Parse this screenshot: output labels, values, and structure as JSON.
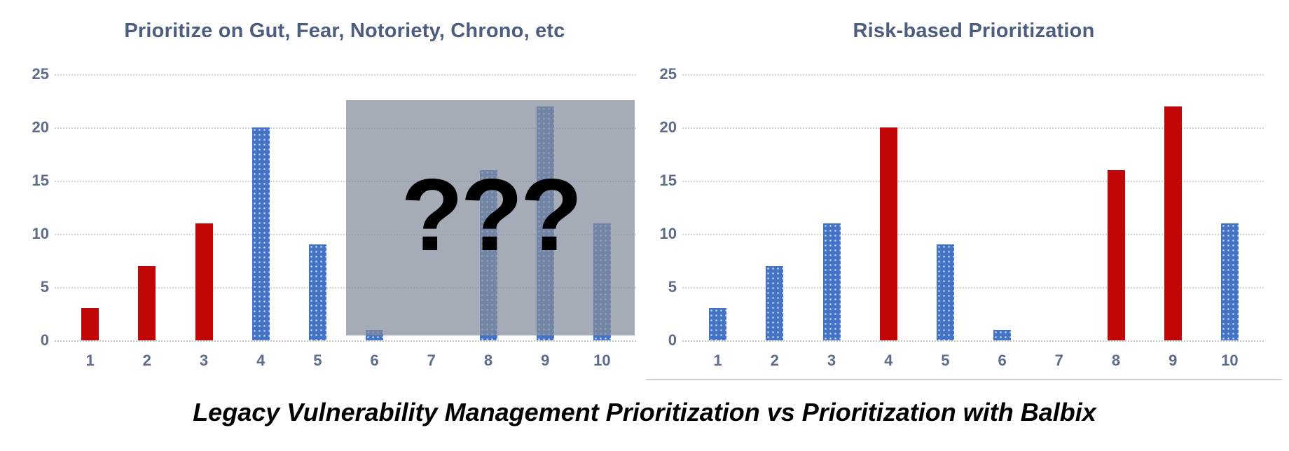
{
  "page": {
    "caption": "Legacy Vulnerability Management Prioritization vs Prioritization with Balbix"
  },
  "colors": {
    "red": "#c00606",
    "blue": "#4472c4",
    "title_text": "#4d5d80",
    "axis_text": "#5d6c8c",
    "grid": "#d4d4d4",
    "overlay": "rgba(132,140,155,0.72)",
    "caption_text": "#000000"
  },
  "chart_data": [
    {
      "type": "bar",
      "title": "Prioritize on Gut, Fear, Notoriety, Chrono, etc",
      "categories": [
        "1",
        "2",
        "3",
        "4",
        "5",
        "6",
        "7",
        "8",
        "9",
        "10"
      ],
      "values": [
        3,
        7,
        11,
        20,
        9,
        1,
        0,
        16,
        22,
        11
      ],
      "bar_colors": [
        "red",
        "red",
        "red",
        "blue",
        "blue",
        "blue",
        "blue",
        "blue",
        "blue",
        "blue"
      ],
      "xlabel": "",
      "ylabel": "",
      "ylim": [
        0,
        25
      ],
      "yticks": [
        0,
        5,
        10,
        15,
        20,
        25
      ],
      "grid": true,
      "legend": null,
      "overlay": {
        "covers_categories": [
          "6",
          "7",
          "8",
          "9",
          "10"
        ],
        "label": "???"
      }
    },
    {
      "type": "bar",
      "title": "Risk-based Prioritization",
      "categories": [
        "1",
        "2",
        "3",
        "4",
        "5",
        "6",
        "7",
        "8",
        "9",
        "10"
      ],
      "values": [
        3,
        7,
        11,
        20,
        9,
        1,
        0,
        16,
        22,
        11
      ],
      "bar_colors": [
        "blue",
        "blue",
        "blue",
        "red",
        "blue",
        "blue",
        "blue",
        "red",
        "red",
        "blue"
      ],
      "xlabel": "",
      "ylabel": "",
      "ylim": [
        0,
        25
      ],
      "yticks": [
        0,
        5,
        10,
        15,
        20,
        25
      ],
      "grid": true,
      "legend": null,
      "overlay": null
    }
  ]
}
